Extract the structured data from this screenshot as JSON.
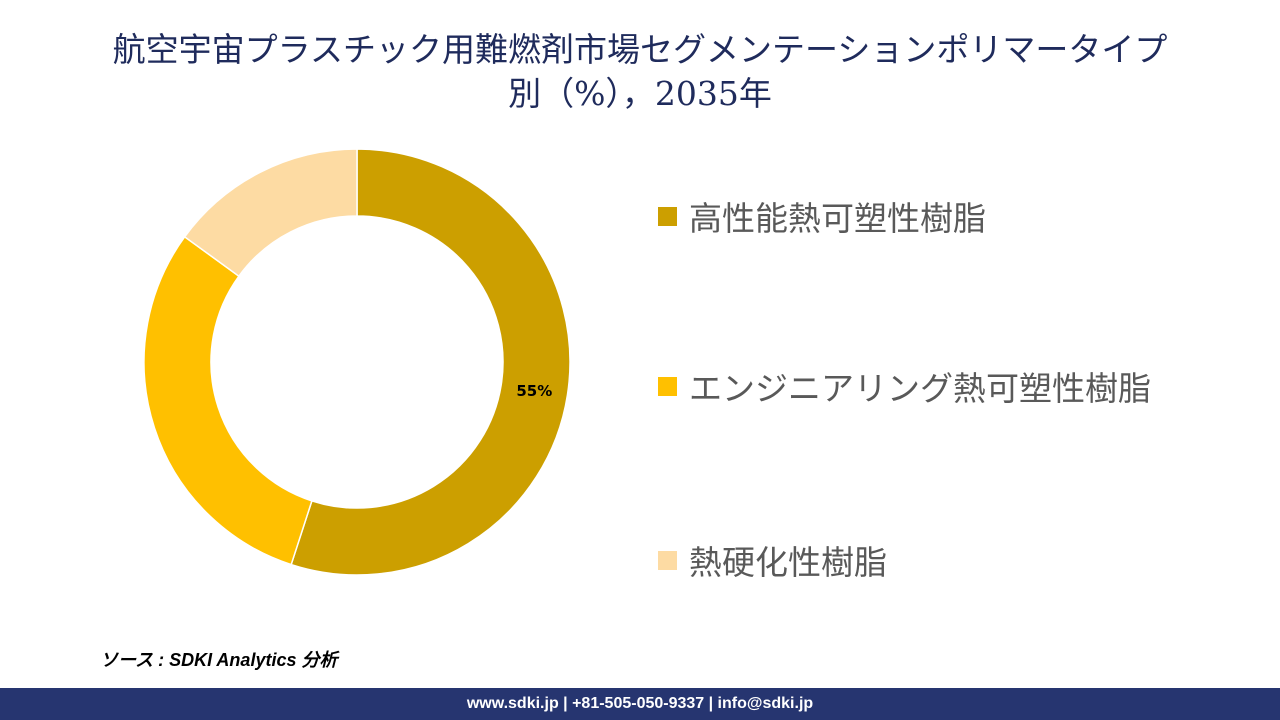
{
  "title": "航空宇宙プラスチック用難燃剤市場セグメンテーションポリマータイプ別（%），2035年",
  "chart_data": {
    "type": "pie",
    "donut": true,
    "title": "航空宇宙プラスチック用難燃剤市場セグメンテーションポリマータイプ別（%），2035年",
    "categories": [
      "高性能熱可塑性樹脂",
      "エンジニアリング熱可塑性樹脂",
      "熱硬化性樹脂"
    ],
    "values": [
      55,
      30,
      15
    ],
    "data_labels": [
      "55%",
      "",
      ""
    ],
    "colors": [
      "#CC9F00",
      "#FFC000",
      "#FDDBA3"
    ],
    "legend_position": "right"
  },
  "source": "ソース : SDKI Analytics 分析",
  "footer": "www.sdki.jp | +81-505-050-9337 | info@sdki.jp"
}
